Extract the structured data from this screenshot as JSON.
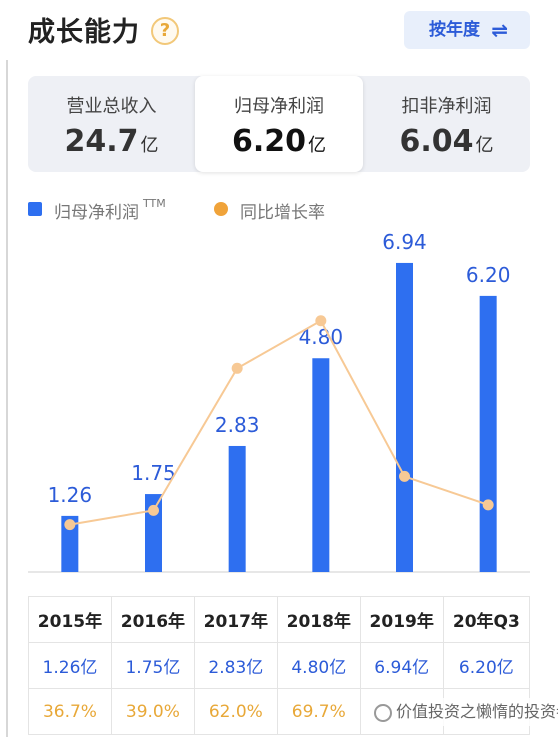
{
  "header": {
    "title": "成长能力",
    "help_icon": "?",
    "switch_label": "按年度",
    "switch_icon": "⇌"
  },
  "tabs": [
    {
      "label": "营业总收入",
      "value": "24.7",
      "unit": "亿",
      "active": false
    },
    {
      "label": "归母净利润",
      "value": "6.20",
      "unit": "亿",
      "active": true
    },
    {
      "label": "扣非净利润",
      "value": "6.04",
      "unit": "亿",
      "active": false
    }
  ],
  "legend": {
    "bar_label": "归母净利润",
    "bar_sup": "TTM",
    "line_label": "同比增长率"
  },
  "colors": {
    "bar": "#2e6ff0",
    "line": "#f7c995",
    "line_dot": "#f7c995",
    "bar_label": "#2c5bd8",
    "growth_text": "#e8a838"
  },
  "chart_data": {
    "type": "bar",
    "categories": [
      "2015年",
      "2016年",
      "2017年",
      "2018年",
      "2019年",
      "20年Q3"
    ],
    "series": [
      {
        "name": "归母净利润",
        "values": [
          1.26,
          1.75,
          2.83,
          4.8,
          6.94,
          6.2
        ],
        "labels": [
          "1.26",
          "1.75",
          "2.83",
          "4.80",
          "6.94",
          "6.20"
        ]
      },
      {
        "name": "同比增长率",
        "type": "line",
        "values": [
          36.7,
          39.0,
          62.0,
          69.7,
          44.5,
          39.9
        ]
      }
    ],
    "ylim": [
      0,
      7.5
    ]
  },
  "table": {
    "years": [
      "2015年",
      "2016年",
      "2017年",
      "2018年",
      "2019年",
      "20年Q3"
    ],
    "profits": [
      "1.26亿",
      "1.75亿",
      "2.83亿",
      "4.80亿",
      "6.94亿",
      "6.20亿"
    ],
    "growth": [
      "36.7%",
      "39.0%",
      "62.0%",
      "69.7%",
      "",
      ""
    ]
  },
  "watermark": "价值投资之懒惰的投资者"
}
